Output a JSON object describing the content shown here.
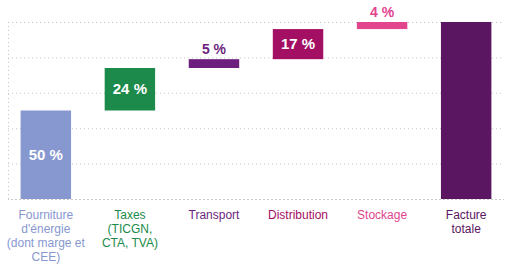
{
  "chart_data": {
    "type": "waterfall",
    "categories": [
      "Fourniture\nd'énergie\n(dont marge et\nCEE)",
      "Taxes\n(TICGN,\nCTA, TVA)",
      "Transport",
      "Distribution",
      "Stockage",
      "Facture\ntotale"
    ],
    "values": [
      50,
      24,
      5,
      17,
      4,
      100
    ],
    "value_labels": [
      "50 %",
      "24 %",
      "5 %",
      "17 %",
      "4 %",
      null
    ],
    "data_labels": true,
    "colors": [
      "#8797cf",
      "#1b8a4a",
      "#6d1f7e",
      "#a30f63",
      "#e2448e",
      "#5a1660"
    ],
    "ylim": [
      0,
      100
    ],
    "yticks": [
      0,
      20,
      40,
      60,
      80,
      100
    ],
    "grid": true,
    "tick_labels": "x"
  }
}
